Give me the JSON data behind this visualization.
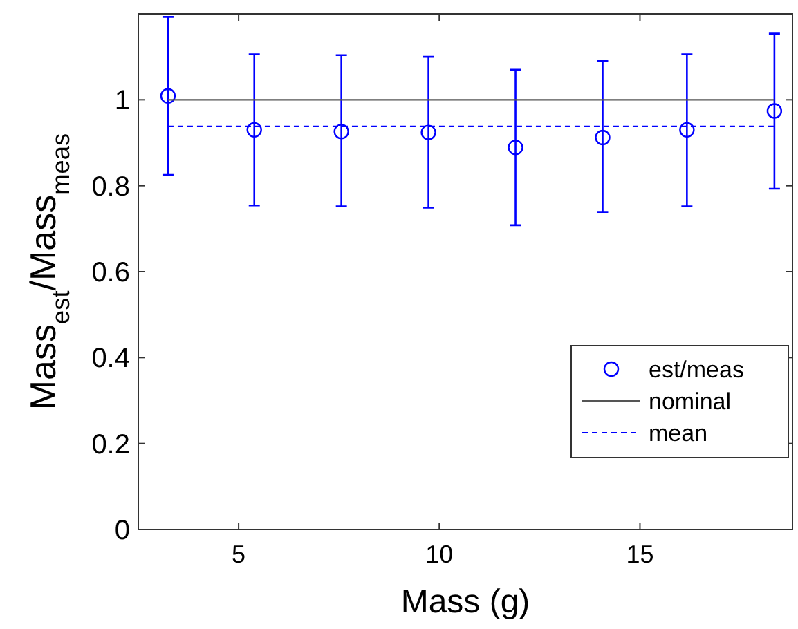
{
  "chart_data": {
    "type": "scatter",
    "xlabel": "Mass (g)",
    "ylabel": "Mass$_{est}$/Mass$_{meas}$",
    "xlim": [
      2.5,
      18.8
    ],
    "ylim": [
      0,
      1.2
    ],
    "xticks": [
      5,
      10,
      15
    ],
    "yticks": [
      0,
      0.2,
      0.4,
      0.6,
      0.8,
      1
    ],
    "grid": false,
    "legend": "right",
    "series": [
      {
        "name": "est/meas",
        "type": "scatter",
        "color": "#0000ff",
        "marker": "circle",
        "x": [
          3.24,
          5.39,
          7.56,
          9.73,
          11.9,
          14.07,
          16.17,
          18.35
        ],
        "values": [
          1.009,
          0.93,
          0.926,
          0.924,
          0.889,
          0.912,
          0.93,
          0.974
        ],
        "errors": [
          [
            0.825,
            1.193
          ],
          [
            0.754,
            1.106
          ],
          [
            0.752,
            1.104
          ],
          [
            0.749,
            1.1
          ],
          [
            0.708,
            1.07
          ],
          [
            0.739,
            1.09
          ],
          [
            0.752,
            1.106
          ],
          [
            0.793,
            1.154
          ]
        ]
      },
      {
        "name": "nominal",
        "type": "line",
        "color": "#555555",
        "line_style": "solid",
        "marker": "none",
        "x": [
          3.24,
          18.35
        ],
        "values": [
          1,
          1
        ]
      },
      {
        "name": "mean",
        "type": "line",
        "color": "#0000ff",
        "line_style": "dashed",
        "marker": "none",
        "x": [
          3.24,
          18.35
        ],
        "values": [
          0.938,
          0.938
        ]
      }
    ]
  }
}
